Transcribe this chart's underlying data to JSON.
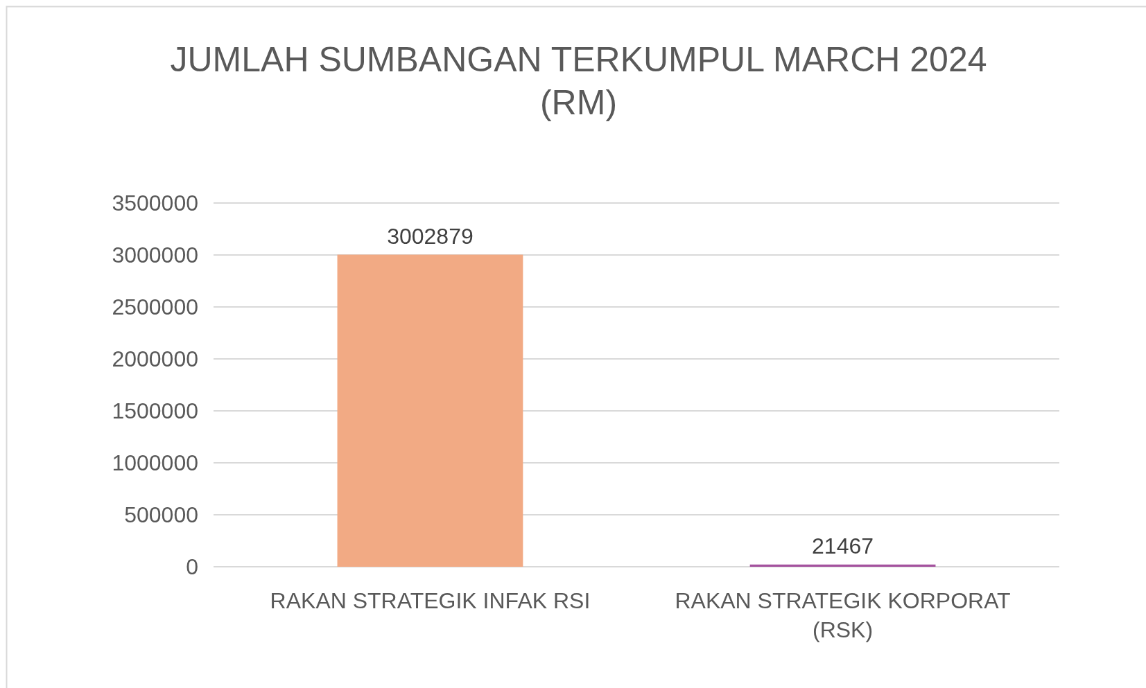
{
  "chart_data": {
    "type": "bar",
    "title": "JUMLAH SUMBANGAN TERKUMPUL MARCH 2024 (RM)",
    "categories": [
      "RAKAN STRATEGIK INFAK RSI",
      "RAKAN STRATEGIK KORPORAT (RSK)"
    ],
    "values": [
      3002879,
      21467
    ],
    "colors": [
      "#f2aa84",
      "#a4529e"
    ],
    "ylim": [
      0,
      3500000
    ],
    "yticks": [
      0,
      500000,
      1000000,
      1500000,
      2000000,
      2500000,
      3000000,
      3500000
    ],
    "grid": "y",
    "data_labels": true
  }
}
